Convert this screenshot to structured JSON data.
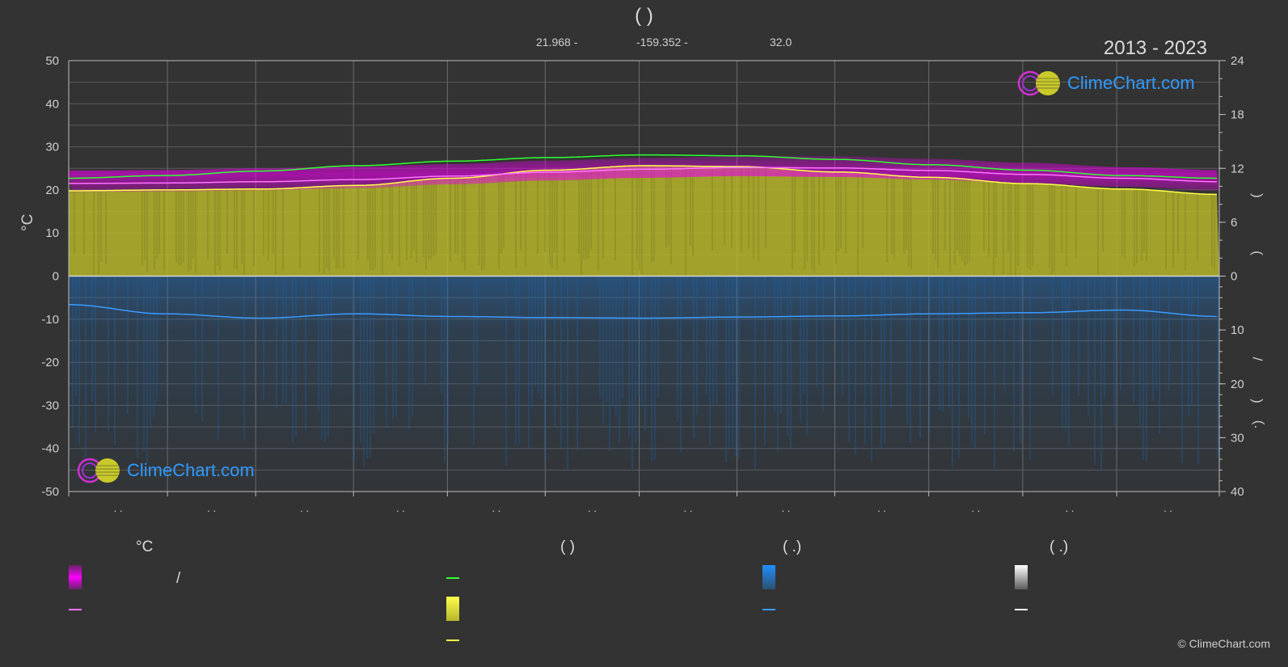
{
  "header": {
    "title": "(        )",
    "latitude": "21.968 -",
    "longitude": "-159.352 -",
    "elevation": "32.0",
    "period": "2013 - 2023"
  },
  "axes": {
    "left_unit": "°C",
    "right_top_label_a": ")",
    "right_top_label_b": "(",
    "right_bottom_label_a": "/",
    "right_bottom_label_b": ")",
    "right_bottom_label_c": "(.",
    "month_tick_text": ". ."
  },
  "logo": {
    "text": "ClimeChart.com"
  },
  "legend": {
    "col1_header": "°C",
    "col1_item1_sep": "/",
    "col2_header": "(            )",
    "col3_header": "(    .)",
    "col4_header": "(    .)"
  },
  "copyright": "© ClimeChart.com",
  "colors": {
    "background": "#333333",
    "temperature_range": "#e600e6",
    "mean_temperature": "#ff73ff",
    "daylight": "#32ff32",
    "sunshine": "#b5b52a",
    "sunshine_line": "#ffff4d",
    "precipitation": "#1f6fbf",
    "precipitation_line": "#3a9bff",
    "snow": "#ffffff"
  },
  "chart_data": {
    "type": "area",
    "left_axis": {
      "ylim": [
        -50,
        50
      ],
      "ticks": [
        -50,
        -40,
        -30,
        -20,
        -10,
        0,
        10,
        20,
        30,
        40,
        50
      ]
    },
    "right_axis_top": {
      "ylim": [
        0,
        24
      ],
      "ticks": [
        0,
        6,
        12,
        18,
        24
      ]
    },
    "right_axis_bottom": {
      "ylim": [
        0,
        40
      ],
      "ticks": [
        10,
        20,
        30,
        40
      ]
    },
    "grid": true,
    "months": 12,
    "series": [
      {
        "key": "daylight",
        "axis": "right_top",
        "x": [
          0,
          1,
          2,
          3,
          4,
          5,
          6,
          7,
          8,
          9,
          10,
          11,
          12
        ],
        "values": [
          10.9,
          11.2,
          11.7,
          12.3,
          12.8,
          13.2,
          13.5,
          13.4,
          13.0,
          12.4,
          11.8,
          11.2,
          10.9
        ]
      },
      {
        "key": "sunshine",
        "axis": "right_top",
        "x": [
          0,
          1,
          2,
          3,
          4,
          5,
          6,
          7,
          8,
          9,
          10,
          11,
          12
        ],
        "values": [
          9.5,
          9.6,
          9.7,
          10.1,
          10.9,
          11.8,
          12.3,
          12.2,
          11.6,
          11.0,
          10.3,
          9.7,
          9.1
        ]
      },
      {
        "key": "mean_temperature",
        "axis": "left",
        "x": [
          0,
          1,
          2,
          3,
          4,
          5,
          6,
          7,
          8,
          9,
          10,
          11,
          12
        ],
        "values": [
          21.5,
          21.6,
          21.9,
          22.4,
          23.2,
          24.1,
          24.8,
          25.2,
          25.1,
          24.5,
          23.6,
          22.7,
          21.9
        ]
      },
      {
        "key": "temperature_max",
        "axis": "left",
        "x": [
          0,
          1,
          2,
          3,
          4,
          5,
          6,
          7,
          8,
          9,
          10,
          11,
          12
        ],
        "values": [
          24.5,
          24.6,
          25.0,
          25.4,
          26.0,
          26.8,
          27.4,
          27.8,
          27.8,
          27.2,
          26.3,
          25.3,
          24.6
        ]
      },
      {
        "key": "temperature_min",
        "axis": "left",
        "x": [
          0,
          1,
          2,
          3,
          4,
          5,
          6,
          7,
          8,
          9,
          10,
          11,
          12
        ],
        "values": [
          19.5,
          19.6,
          19.9,
          20.4,
          21.3,
          22.2,
          22.8,
          23.2,
          23.0,
          22.4,
          21.5,
          20.7,
          19.9
        ]
      },
      {
        "key": "precipitation",
        "axis": "right_bottom",
        "x": [
          0,
          1,
          2,
          3,
          4,
          5,
          6,
          7,
          8,
          9,
          10,
          11,
          12
        ],
        "values": [
          5.3,
          7.0,
          7.8,
          7.0,
          7.5,
          7.7,
          7.8,
          7.6,
          7.4,
          7.0,
          6.8,
          6.3,
          7.5
        ]
      }
    ]
  }
}
